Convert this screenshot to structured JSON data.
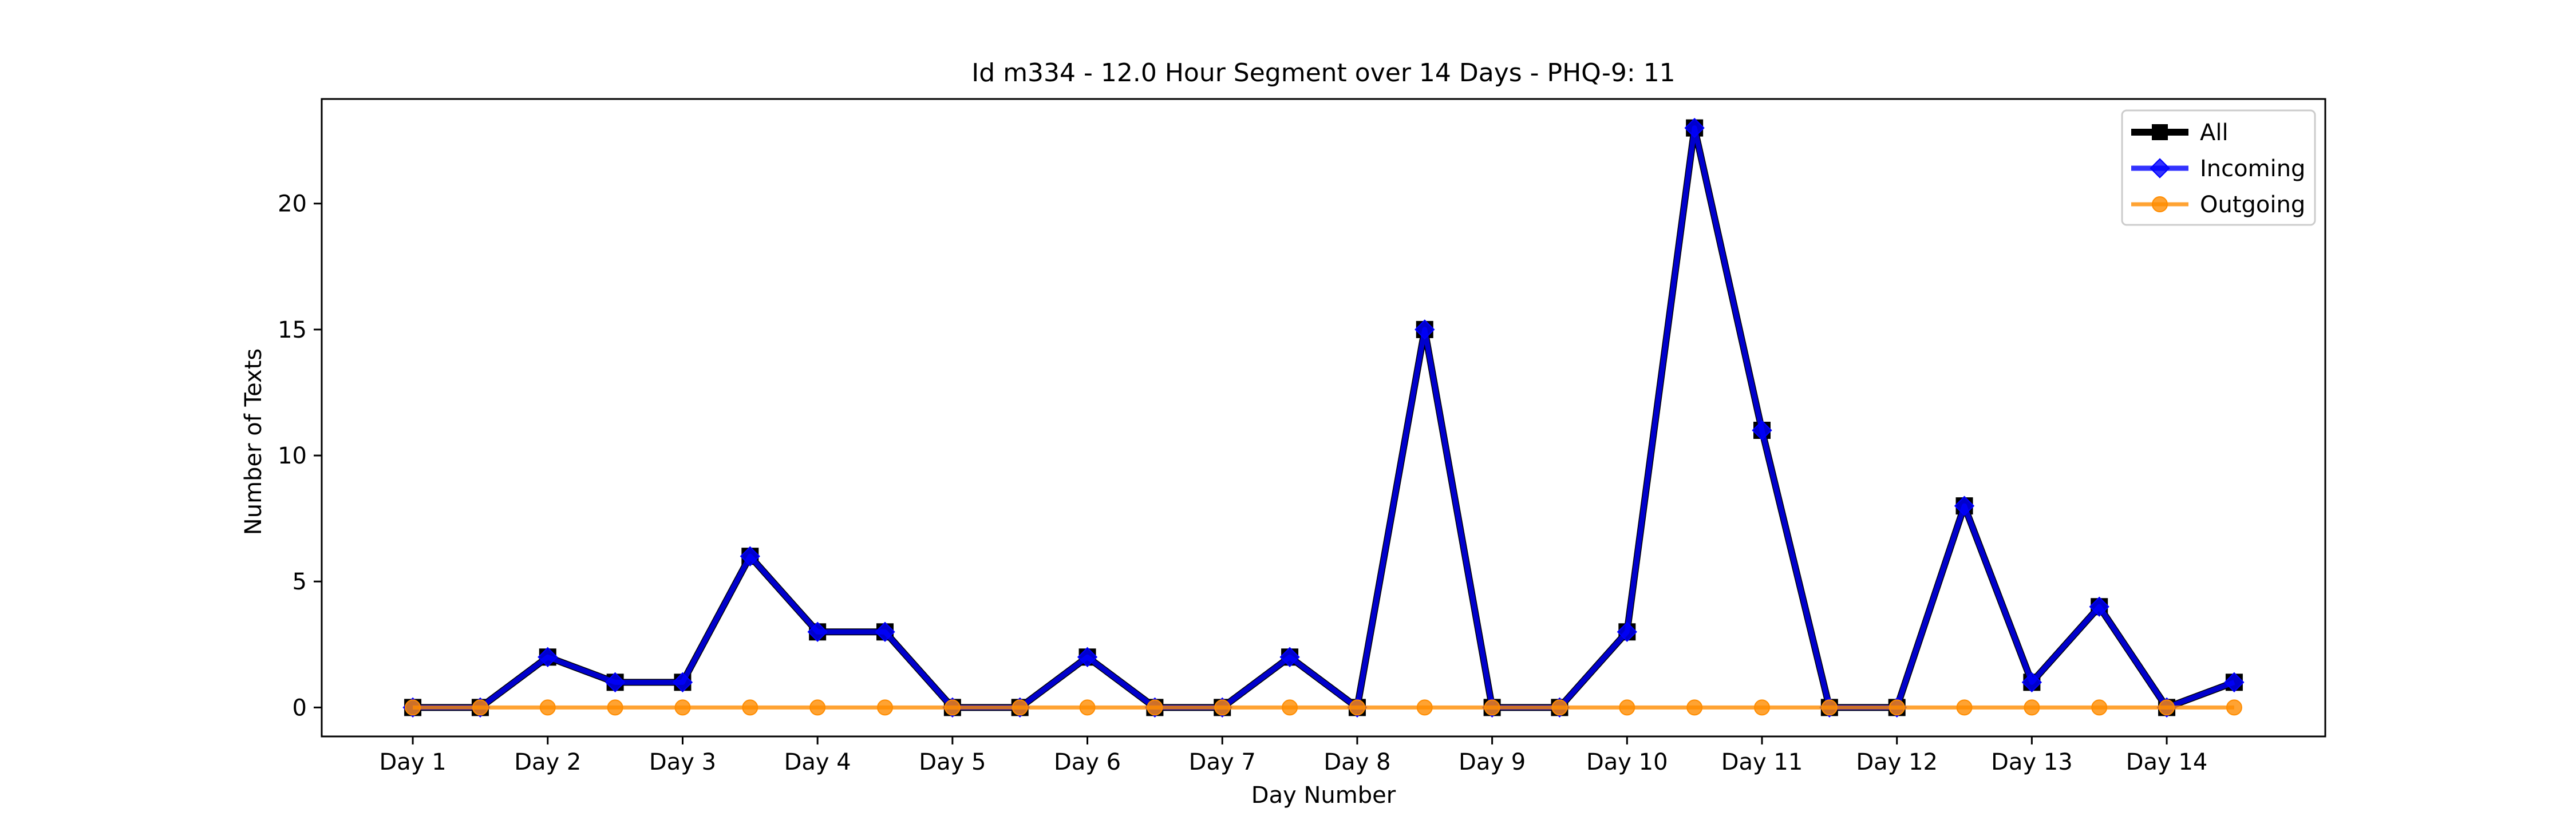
{
  "chart_data": {
    "type": "line",
    "title": "Id m334 - 12.0 Hour Segment over 14 Days - PHQ-9: 11",
    "xlabel": "Day Number",
    "ylabel": "Number of Texts",
    "x_tick_labels": [
      "Day 1",
      "Day 2",
      "Day 3",
      "Day 4",
      "Day 5",
      "Day 6",
      "Day 7",
      "Day 8",
      "Day 9",
      "Day 10",
      "Day 11",
      "Day 12",
      "Day 13",
      "Day 14"
    ],
    "x_tick_positions": [
      0,
      2,
      4,
      6,
      8,
      10,
      12,
      14,
      16,
      18,
      20,
      22,
      24,
      26
    ],
    "x": [
      0,
      1,
      2,
      3,
      4,
      5,
      6,
      7,
      8,
      9,
      10,
      11,
      12,
      13,
      14,
      15,
      16,
      17,
      18,
      19,
      20,
      21,
      22,
      23,
      24,
      25,
      26,
      27
    ],
    "xlim": [
      -1.35,
      28.35
    ],
    "ylim": [
      -1.15,
      24.15
    ],
    "y_ticks": [
      0,
      5,
      10,
      15,
      20
    ],
    "grid": false,
    "legend_position": "top-right",
    "series": [
      {
        "name": "All",
        "color": "#000000",
        "marker": "square",
        "values": [
          0,
          0,
          2,
          1,
          1,
          6,
          3,
          3,
          0,
          0,
          2,
          0,
          0,
          2,
          0,
          15,
          0,
          0,
          3,
          23,
          11,
          0,
          0,
          8,
          1,
          4,
          0,
          1
        ]
      },
      {
        "name": "Incoming",
        "color": "#0000ff",
        "marker": "diamond",
        "values": [
          0,
          0,
          2,
          1,
          1,
          6,
          3,
          3,
          0,
          0,
          2,
          0,
          0,
          2,
          0,
          15,
          0,
          0,
          3,
          23,
          11,
          0,
          0,
          8,
          1,
          4,
          0,
          1
        ]
      },
      {
        "name": "Outgoing",
        "color": "#ff8c00",
        "marker": "circle",
        "values": [
          0,
          0,
          0,
          0,
          0,
          0,
          0,
          0,
          0,
          0,
          0,
          0,
          0,
          0,
          0,
          0,
          0,
          0,
          0,
          0,
          0,
          0,
          0,
          0,
          0,
          0,
          0,
          0
        ]
      }
    ]
  }
}
